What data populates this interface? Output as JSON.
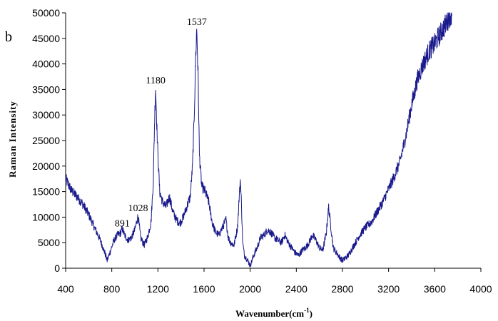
{
  "chart_data": {
    "type": "line",
    "panel_label": "b",
    "title": "",
    "xlabel": "Wavenumber(cm",
    "xlabel_sup": "-1",
    "xlabel_close": ")",
    "ylabel": "Raman Intensity",
    "xlim": [
      400,
      4000
    ],
    "ylim": [
      0,
      50000
    ],
    "x_ticks": [
      "400",
      "800",
      "1200",
      "1600",
      "2000",
      "2400",
      "2800",
      "3200",
      "3600",
      "4000"
    ],
    "y_ticks": [
      "0",
      "5000",
      "10000",
      "15000",
      "20000",
      "25000",
      "30000",
      "35000",
      "40000",
      "45000",
      "50000"
    ],
    "line_color": "#1a1a8c",
    "grid": false,
    "annotations": [
      {
        "text": "891",
        "x": 891,
        "y": 8200
      },
      {
        "text": "1028",
        "x": 1028,
        "y": 11200
      },
      {
        "text": "1180",
        "x": 1180,
        "y": 36200
      },
      {
        "text": "1537",
        "x": 1537,
        "y": 47600
      }
    ],
    "series": [
      {
        "x": [
          400,
          450,
          500,
          550,
          600,
          650,
          700,
          740,
          760,
          790,
          820,
          850,
          880,
          891,
          910,
          940,
          970,
          1000,
          1028,
          1050,
          1080,
          1110,
          1140,
          1160,
          1170,
          1180,
          1195,
          1215,
          1240,
          1270,
          1300,
          1330,
          1360,
          1390,
          1420,
          1450,
          1480,
          1500,
          1515,
          1527,
          1537,
          1548,
          1560,
          1580,
          1610,
          1640,
          1670,
          1700,
          1730,
          1760,
          1790,
          1810,
          1830,
          1860,
          1890,
          1905,
          1915,
          1925,
          1935,
          1950,
          1980,
          2000,
          2030,
          2060,
          2090,
          2120,
          2150,
          2180,
          2210,
          2240,
          2270,
          2300,
          2330,
          2360,
          2390,
          2420,
          2450,
          2480,
          2510,
          2540,
          2570,
          2600,
          2630,
          2660,
          2680,
          2700,
          2720,
          2750,
          2780,
          2800,
          2850,
          2900,
          2950,
          3000,
          3050,
          3100,
          3150,
          3200,
          3250,
          3300,
          3350,
          3400,
          3450,
          3500,
          3550,
          3600,
          3650,
          3700,
          3730,
          3750
        ],
        "values": [
          17500,
          15200,
          14000,
          12500,
          10500,
          8000,
          5500,
          3000,
          1500,
          3500,
          5500,
          6500,
          7000,
          7800,
          6500,
          5500,
          6000,
          7500,
          10300,
          6000,
          4500,
          6000,
          9000,
          17000,
          28000,
          35500,
          25000,
          15000,
          13000,
          12000,
          14000,
          11000,
          9500,
          8800,
          10000,
          12000,
          14000,
          20000,
          30000,
          41000,
          47000,
          38000,
          22000,
          16000,
          15000,
          13000,
          9000,
          7000,
          6500,
          8000,
          9500,
          6000,
          5000,
          4500,
          8000,
          14000,
          17500,
          12000,
          5000,
          2500,
          1500,
          500,
          2500,
          4000,
          6000,
          6500,
          7500,
          7000,
          6000,
          5500,
          5000,
          6500,
          5000,
          4000,
          3000,
          2500,
          3500,
          4000,
          5000,
          6500,
          5500,
          4000,
          3500,
          7000,
          12000,
          8000,
          4000,
          3000,
          2000,
          1500,
          2500,
          4500,
          6500,
          8000,
          9000,
          11000,
          13000,
          15500,
          18000,
          21000,
          26000,
          32000,
          37000,
          40000,
          42500,
          44000,
          46000,
          48000,
          49500,
          50000
        ]
      }
    ]
  }
}
